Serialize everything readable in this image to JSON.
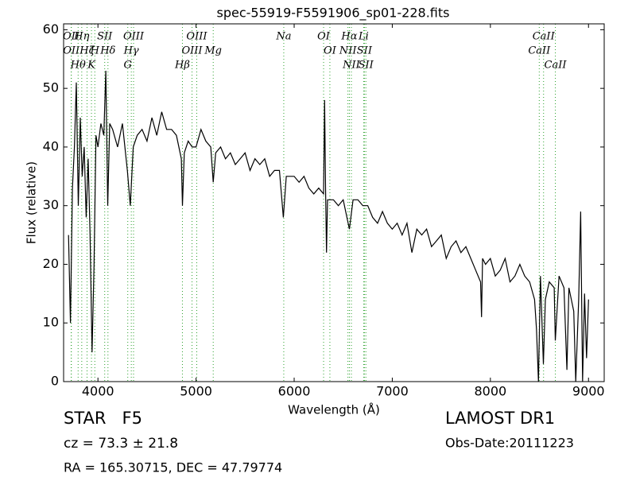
{
  "chart_data": {
    "type": "line",
    "title": "spec-55919-F5591906_sp01-228.fits",
    "x_label": "Wavelength (Å)",
    "y_label": "Flux (relative)",
    "xlim": [
      3650,
      9160
    ],
    "ylim": [
      0,
      61
    ],
    "xticks": [
      4000,
      5000,
      6000,
      7000,
      8000,
      9000
    ],
    "yticks": [
      0,
      10,
      20,
      30,
      40,
      50,
      60
    ],
    "line_color": "#2ca02c",
    "spectral_lines": [
      {
        "label": "OII",
        "x": 3727
      },
      {
        "label": "OII",
        "x": 3729
      },
      {
        "label": "Hθ",
        "x": 3798
      },
      {
        "label": "Hη",
        "x": 3835
      },
      {
        "label": "Hζ",
        "x": 3889
      },
      {
        "label": "K",
        "x": 3934
      },
      {
        "label": "SII",
        "x": 4069
      },
      {
        "label": "H",
        "x": 3968
      },
      {
        "label": "Hδ",
        "x": 4102
      },
      {
        "label": "OIII",
        "x": 4363
      },
      {
        "label": "Hγ",
        "x": 4340
      },
      {
        "label": "G",
        "x": 4304
      },
      {
        "label": "OIII",
        "x": 5007
      },
      {
        "label": "OIII",
        "x": 4959
      },
      {
        "label": "Hβ",
        "x": 4861
      },
      {
        "label": "Mg",
        "x": 5175
      },
      {
        "label": "Na",
        "x": 5894
      },
      {
        "label": "OI",
        "x": 6300
      },
      {
        "label": "OI",
        "x": 6364
      },
      {
        "label": "Hα",
        "x": 6563
      },
      {
        "label": "NII",
        "x": 6548
      },
      {
        "label": "NII",
        "x": 6583
      },
      {
        "label": "SII",
        "x": 6716
      },
      {
        "label": "Li",
        "x": 6708
      },
      {
        "label": "SII",
        "x": 6731
      },
      {
        "label": "CaII",
        "x": 8542
      },
      {
        "label": "CaII",
        "x": 8498
      },
      {
        "label": "CaII",
        "x": 8662
      }
    ],
    "x": [
      3700,
      3720,
      3740,
      3760,
      3780,
      3800,
      3820,
      3840,
      3860,
      3880,
      3900,
      3920,
      3940,
      3960,
      3980,
      4000,
      4030,
      4060,
      4080,
      4100,
      4120,
      4150,
      4200,
      4250,
      4300,
      4330,
      4360,
      4400,
      4450,
      4500,
      4550,
      4600,
      4650,
      4700,
      4750,
      4800,
      4850,
      4861,
      4880,
      4920,
      4960,
      5000,
      5050,
      5100,
      5150,
      5175,
      5200,
      5250,
      5300,
      5350,
      5400,
      5450,
      5500,
      5550,
      5600,
      5650,
      5700,
      5750,
      5800,
      5850,
      5890,
      5920,
      6000,
      6050,
      6100,
      6150,
      6200,
      6250,
      6300,
      6310,
      6320,
      6330,
      6340,
      6400,
      6450,
      6500,
      6563,
      6600,
      6650,
      6700,
      6750,
      6800,
      6850,
      6900,
      6950,
      7000,
      7050,
      7100,
      7150,
      7200,
      7250,
      7300,
      7350,
      7400,
      7450,
      7500,
      7550,
      7600,
      7650,
      7700,
      7750,
      7800,
      7850,
      7900,
      7910,
      7920,
      7950,
      8000,
      8050,
      8100,
      8150,
      8200,
      8250,
      8300,
      8350,
      8400,
      8450,
      8470,
      8490,
      8510,
      8540,
      8560,
      8600,
      8650,
      8662,
      8700,
      8750,
      8780,
      8800,
      8850,
      8870,
      8900,
      8920,
      8940,
      8960,
      8980,
      9000
    ],
    "series": [
      {
        "name": "flux",
        "color": "#000000",
        "values": [
          25,
          10,
          33,
          40,
          51,
          30,
          45,
          35,
          40,
          28,
          38,
          25,
          5,
          20,
          42,
          40,
          44,
          42,
          53,
          30,
          44,
          43,
          40,
          44,
          36,
          30,
          40,
          42,
          43,
          41,
          45,
          42,
          46,
          43,
          43,
          42,
          38,
          30,
          39,
          41,
          40,
          40,
          43,
          41,
          40,
          34,
          39,
          40,
          38,
          39,
          37,
          38,
          39,
          36,
          38,
          37,
          38,
          35,
          36,
          36,
          28,
          35,
          35,
          34,
          35,
          33,
          32,
          33,
          32,
          48,
          33,
          22,
          31,
          31,
          30,
          31,
          26,
          31,
          31,
          30,
          30,
          28,
          27,
          29,
          27,
          26,
          27,
          25,
          27,
          22,
          26,
          25,
          26,
          23,
          24,
          25,
          21,
          23,
          24,
          22,
          23,
          21,
          19,
          17,
          11,
          21,
          20,
          21,
          18,
          19,
          21,
          17,
          18,
          20,
          18,
          17,
          14,
          9,
          0,
          18,
          3,
          14,
          17,
          16,
          7,
          18,
          16,
          2,
          16,
          12,
          0,
          14,
          29,
          0,
          15,
          4,
          14
        ]
      }
    ],
    "class_text": "STAR   F5",
    "cz_text": "cz = 73.3 ± 21.8",
    "coord_text": "RA = 165.30715, DEC = 47.79774",
    "survey_text": "LAMOST DR1",
    "date_text": "Obs-Date:20111223"
  }
}
